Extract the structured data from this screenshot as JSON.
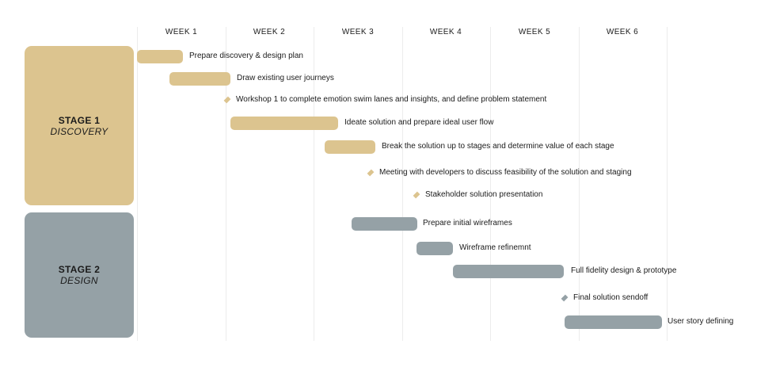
{
  "colors": {
    "discovery": "#dcc48f",
    "design": "#95a1a6",
    "grid": "#ececec",
    "text": "#1b1b1b"
  },
  "weeks": [
    "WEEK 1",
    "WEEK 2",
    "WEEK 3",
    "WEEK 4",
    "WEEK 5",
    "WEEK 6"
  ],
  "stages": [
    {
      "title": "STAGE 1",
      "name": "DISCOVERY",
      "color": "#dcc48f"
    },
    {
      "title": "STAGE 2",
      "name": "DESIGN",
      "color": "#95a1a6"
    }
  ],
  "chart_data": {
    "type": "gantt",
    "time_unit": "week",
    "x_range": [
      0,
      6
    ],
    "tasks": [
      {
        "label": "Prepare discovery & design plan",
        "stage": "STAGE 1",
        "type": "bar",
        "start": 0.0,
        "end": 0.52
      },
      {
        "label": "Draw existing user journeys",
        "stage": "STAGE 1",
        "type": "bar",
        "start": 0.37,
        "end": 1.06
      },
      {
        "label": "Workshop 1 to complete emotion swim lanes and insights, and define problem statement",
        "stage": "STAGE 1",
        "type": "milestone",
        "at": 1.02
      },
      {
        "label": "Ideate solution and prepare ideal user flow",
        "stage": "STAGE 1",
        "type": "bar",
        "start": 1.06,
        "end": 2.28
      },
      {
        "label": "Break the solution up to stages and determine value of each stage",
        "stage": "STAGE 1",
        "type": "bar",
        "start": 2.13,
        "end": 2.7
      },
      {
        "label": "Meeting with developers to discuss feasibility of the solution and staging",
        "stage": "STAGE 1",
        "type": "milestone",
        "at": 2.65
      },
      {
        "label": "Stakeholder solution presentation",
        "stage": "STAGE 1",
        "type": "milestone",
        "at": 3.17
      },
      {
        "label": "Prepare initial wireframes",
        "stage": "STAGE 2",
        "type": "bar",
        "start": 2.43,
        "end": 3.17
      },
      {
        "label": "Wireframe refinemnt",
        "stage": "STAGE 2",
        "type": "bar",
        "start": 3.17,
        "end": 3.58
      },
      {
        "label": "Full fidelity design & prototype",
        "stage": "STAGE 2",
        "type": "bar",
        "start": 3.58,
        "end": 4.84
      },
      {
        "label": "Final solution sendoff",
        "stage": "STAGE 2",
        "type": "milestone",
        "at": 4.84
      },
      {
        "label": "User story defining",
        "stage": "STAGE 2",
        "type": "bar",
        "start": 4.84,
        "end": 5.94
      }
    ]
  }
}
